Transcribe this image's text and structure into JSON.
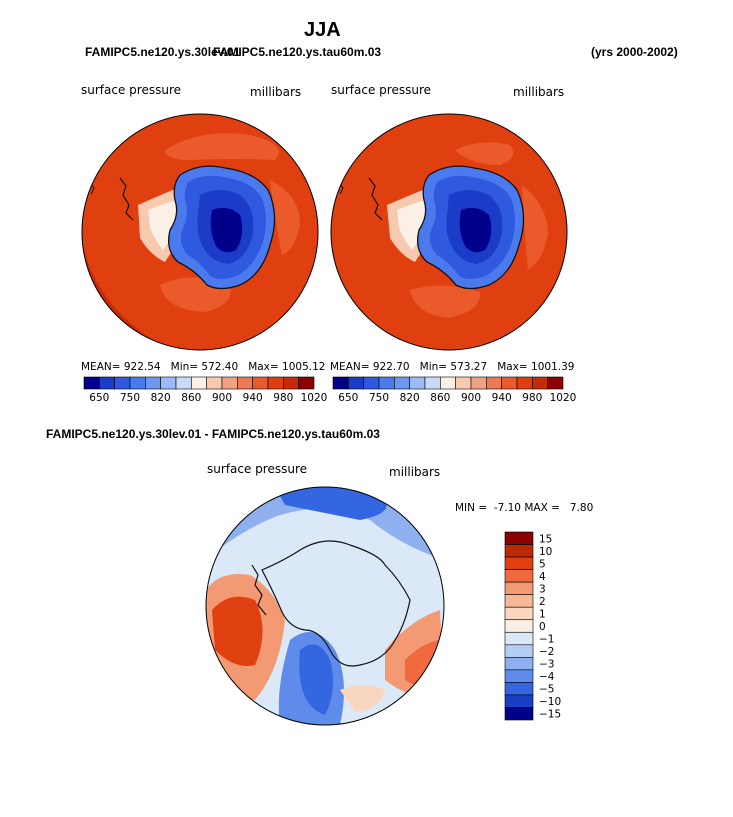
{
  "page": {
    "title": "JJA",
    "case_left": "FAMIPC5.ne120.ys.30lev.01",
    "case_overlap": "FAMIPC5.ne120.ys.tau60m.03",
    "years": "(yrs 2000-2002)",
    "diff_title": "FAMIPC5.ne120.ys.30lev.01 - FAMIPC5.ne120.ys.tau60m.03"
  },
  "panel_left": {
    "variable": "surface pressure",
    "units": "millibars",
    "mean": "922.54",
    "min": "572.40",
    "max": "1005.12"
  },
  "panel_right": {
    "variable": "surface pressure",
    "units": "millibars",
    "mean": "922.70",
    "min": "573.27",
    "max": "1001.39"
  },
  "panel_diff": {
    "variable": "surface pressure",
    "units": "millibars",
    "min_max": "MIN =  -7.10 MAX =   7.80"
  },
  "labels": {
    "mean": "MEAN=",
    "min": "Min=",
    "max": "Max="
  },
  "chart_data": [
    {
      "type": "heatmap",
      "title": "surface pressure",
      "units": "millibars",
      "projection": "south polar stereographic",
      "colorbar": {
        "levels": [
          650,
          700,
          750,
          800,
          820,
          840,
          860,
          880,
          900,
          920,
          940,
          960,
          980,
          1000,
          1020
        ],
        "tick_labels": [
          "650",
          "750",
          "820",
          "860",
          "900",
          "940",
          "980",
          "1020"
        ],
        "colors": [
          "#00008b",
          "#1a3cc8",
          "#2f5ae0",
          "#4a7aed",
          "#6e98f0",
          "#9cbaf5",
          "#c8daf8",
          "#fbf0e5",
          "#f8c9ae",
          "#f3a281",
          "#ee7a55",
          "#e95a2c",
          "#e03e10",
          "#c62a06",
          "#8b0000"
        ]
      },
      "stats": {
        "mean": 922.54,
        "min": 572.4,
        "max": 1005.12
      }
    },
    {
      "type": "heatmap",
      "title": "surface pressure",
      "units": "millibars",
      "projection": "south polar stereographic",
      "colorbar": {
        "levels": [
          650,
          700,
          750,
          800,
          820,
          840,
          860,
          880,
          900,
          920,
          940,
          960,
          980,
          1000,
          1020
        ],
        "tick_labels": [
          "650",
          "750",
          "820",
          "860",
          "900",
          "940",
          "980",
          "1020"
        ]
      },
      "stats": {
        "mean": 922.7,
        "min": 573.27,
        "max": 1001.39
      }
    },
    {
      "type": "heatmap",
      "title": "surface pressure",
      "units": "millibars",
      "projection": "south polar stereographic",
      "colorbar": {
        "levels": [
          15,
          10,
          5,
          4,
          3,
          2,
          1,
          0,
          -1,
          -2,
          -3,
          -4,
          -5,
          -10,
          -15
        ],
        "tick_labels": [
          "15",
          "10",
          "5",
          "4",
          "3",
          "2",
          "1",
          "0",
          "−1",
          "−2",
          "−3",
          "−4",
          "−5",
          "−10",
          "−15"
        ],
        "colors": [
          "#8b0000",
          "#bb2a05",
          "#e0400f",
          "#ef6a3e",
          "#f39a74",
          "#f6b896",
          "#f9d6c0",
          "#fbeee3",
          "#dbe8f8",
          "#b4cdf3",
          "#8fb0ef",
          "#5f8cea",
          "#3466e2",
          "#1840c4",
          "#00008b"
        ]
      },
      "stats": {
        "min": -7.1,
        "max": 7.8
      }
    }
  ]
}
